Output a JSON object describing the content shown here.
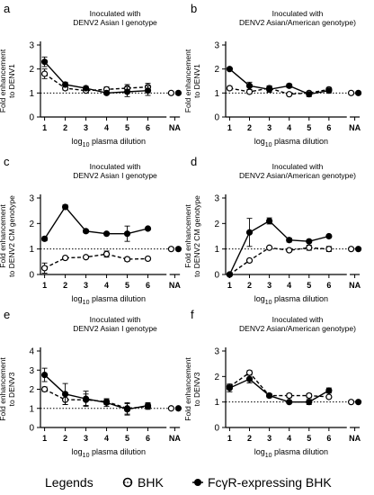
{
  "legend": {
    "title": "Legends",
    "items": [
      "BHK",
      "FcγR-expressing BHK"
    ]
  },
  "colors": {
    "line": "#000000",
    "open_fill": "#ffffff"
  },
  "chart_data": [
    {
      "panel": "a",
      "type": "line",
      "title": "Inoculated with\nDENV2 Asian I genotype",
      "ylabel": "Fold enhancement\nto DENV1",
      "xlabel": "log10 plasma dilution",
      "x_ticks": [
        "1",
        "2",
        "3",
        "4",
        "5",
        "6",
        "NA"
      ],
      "ylim": [
        0,
        3
      ],
      "y_ticks": [
        0,
        1,
        2,
        3
      ],
      "reference_line": 1,
      "series": [
        {
          "name": "BHK",
          "marker": "open",
          "line": "dashed",
          "x": [
            1,
            2,
            3,
            4,
            5,
            6,
            "NA"
          ],
          "values": [
            1.8,
            1.2,
            1.1,
            1.15,
            1.2,
            1.25,
            1.0
          ],
          "errors": [
            0.2,
            0.08,
            0.08,
            0.1,
            0.15,
            0.15,
            0
          ]
        },
        {
          "name": "FcγR-expressing BHK",
          "marker": "filled",
          "line": "solid",
          "x": [
            1,
            2,
            3,
            4,
            5,
            6,
            "NA"
          ],
          "values": [
            2.3,
            1.35,
            1.2,
            1.0,
            1.05,
            1.1,
            1.0
          ],
          "errors": [
            0.2,
            0.1,
            0.08,
            0.06,
            0.2,
            0.2,
            0
          ]
        }
      ]
    },
    {
      "panel": "b",
      "type": "line",
      "title": "Inoculated with\nDENV2 Asian/American genotype)",
      "ylabel": "Fold enhancement\nto DENV1",
      "xlabel": "log10 plasma dilution",
      "x_ticks": [
        "1",
        "2",
        "3",
        "4",
        "5",
        "6",
        "NA"
      ],
      "ylim": [
        0,
        3
      ],
      "y_ticks": [
        0,
        1,
        2,
        3
      ],
      "reference_line": 1,
      "series": [
        {
          "name": "BHK",
          "marker": "open",
          "line": "dashed",
          "x": [
            1,
            2,
            3,
            4,
            5,
            6,
            "NA"
          ],
          "values": [
            1.2,
            1.05,
            1.2,
            0.95,
            1.0,
            1.15,
            1.0
          ],
          "errors": [
            0.08,
            0.08,
            0.1,
            0.05,
            0.05,
            0.08,
            0
          ]
        },
        {
          "name": "FcγR-expressing BHK",
          "marker": "filled",
          "line": "solid",
          "x": [
            1,
            2,
            3,
            4,
            5,
            6,
            "NA"
          ],
          "values": [
            2.0,
            1.3,
            1.15,
            1.3,
            0.95,
            1.1,
            1.0
          ],
          "errors": [
            0.05,
            0.15,
            0.12,
            0.08,
            0.1,
            0.1,
            0
          ]
        }
      ]
    },
    {
      "panel": "c",
      "type": "line",
      "title": "Inoculated with\nDENV2 Asian I genotype",
      "ylabel": "Fold enhancement\nto DENV2 CM genotype",
      "xlabel": "log10 plasma dilution",
      "x_ticks": [
        "1",
        "2",
        "3",
        "4",
        "5",
        "6",
        "NA"
      ],
      "ylim": [
        0,
        3
      ],
      "y_ticks": [
        0,
        1,
        2,
        3
      ],
      "reference_line": 1,
      "series": [
        {
          "name": "BHK",
          "marker": "open",
          "line": "dashed",
          "x": [
            1,
            2,
            3,
            4,
            5,
            6,
            "NA"
          ],
          "values": [
            0.25,
            0.65,
            0.68,
            0.8,
            0.6,
            0.62,
            1.0
          ],
          "errors": [
            0.2,
            0.05,
            0.05,
            0.12,
            0.08,
            0.05,
            0
          ]
        },
        {
          "name": "FcγR-expressing BHK",
          "marker": "filled",
          "line": "solid",
          "x": [
            1,
            2,
            3,
            4,
            5,
            6,
            "NA"
          ],
          "values": [
            1.4,
            2.65,
            1.7,
            1.6,
            1.6,
            1.8,
            1.0
          ],
          "errors": [
            0.08,
            0.08,
            0.05,
            0.05,
            0.3,
            0.05,
            0
          ]
        }
      ]
    },
    {
      "panel": "d",
      "type": "line",
      "title": "Inoculated with\nDENV2 Asian/American genotype)",
      "ylabel": "Fold enhancement\nto DENV2 CM genotype",
      "xlabel": "log10 plasma dilution",
      "x_ticks": [
        "1",
        "2",
        "3",
        "4",
        "5",
        "6",
        "NA"
      ],
      "ylim": [
        0,
        3
      ],
      "y_ticks": [
        0,
        1,
        2,
        3
      ],
      "reference_line": 1,
      "series": [
        {
          "name": "BHK",
          "marker": "open",
          "line": "dashed",
          "x": [
            1,
            2,
            3,
            4,
            5,
            6,
            "NA"
          ],
          "values": [
            0.0,
            0.55,
            1.05,
            0.95,
            1.05,
            1.0,
            1.0
          ],
          "errors": [
            0.02,
            0.05,
            0.05,
            0.05,
            0.1,
            0.1,
            0
          ]
        },
        {
          "name": "FcγR-expressing BHK",
          "marker": "filled",
          "line": "solid",
          "x": [
            1,
            2,
            3,
            4,
            5,
            6,
            "NA"
          ],
          "values": [
            0.0,
            1.65,
            2.1,
            1.35,
            1.3,
            1.5,
            1.0
          ],
          "errors": [
            0.02,
            0.55,
            0.12,
            0.08,
            0.05,
            0.05,
            0
          ]
        }
      ]
    },
    {
      "panel": "e",
      "type": "line",
      "title": "Inoculated with\nDENV2 Asian I genotype",
      "ylabel": "Fold enhancement\nto DENV3",
      "xlabel": "log10 plasma dilution",
      "x_ticks": [
        "1",
        "2",
        "3",
        "4",
        "5",
        "6",
        "NA"
      ],
      "ylim": [
        0,
        4
      ],
      "y_ticks": [
        0,
        1,
        2,
        3,
        4
      ],
      "reference_line": 1,
      "series": [
        {
          "name": "BHK",
          "marker": "open",
          "line": "dashed",
          "x": [
            1,
            2,
            3,
            4,
            5,
            6,
            "NA"
          ],
          "values": [
            2.0,
            1.45,
            1.45,
            1.35,
            1.0,
            1.1,
            1.0
          ],
          "errors": [
            0.12,
            0.25,
            0.3,
            0.15,
            0.3,
            0.15,
            0
          ]
        },
        {
          "name": "FcγR-expressing BHK",
          "marker": "filled",
          "line": "solid",
          "x": [
            1,
            2,
            3,
            4,
            5,
            6,
            "NA"
          ],
          "values": [
            2.75,
            1.75,
            1.5,
            1.3,
            0.95,
            1.15,
            1.0
          ],
          "errors": [
            0.35,
            0.55,
            0.4,
            0.2,
            0.3,
            0.15,
            0
          ]
        }
      ]
    },
    {
      "panel": "f",
      "type": "line",
      "title": "Inoculated with\nDENV2 Asian/American genotype)",
      "ylabel": "Fold enhancement\nto DENV3",
      "xlabel": "log10 plasma dilution",
      "x_ticks": [
        "1",
        "2",
        "3",
        "4",
        "5",
        "6",
        "NA"
      ],
      "ylim": [
        0,
        3
      ],
      "y_ticks": [
        0,
        1,
        2,
        3
      ],
      "reference_line": 1,
      "series": [
        {
          "name": "BHK",
          "marker": "open",
          "line": "dashed",
          "x": [
            1,
            2,
            3,
            4,
            5,
            6,
            "NA"
          ],
          "values": [
            1.6,
            2.15,
            1.25,
            1.25,
            1.25,
            1.2,
            1.0
          ],
          "errors": [
            0.1,
            0.08,
            0.05,
            0.08,
            0.08,
            0.05,
            0
          ]
        },
        {
          "name": "FcγR-expressing BHK",
          "marker": "filled",
          "line": "solid",
          "x": [
            1,
            2,
            3,
            4,
            5,
            6,
            "NA"
          ],
          "values": [
            1.55,
            1.9,
            1.25,
            1.0,
            1.0,
            1.45,
            1.0
          ],
          "errors": [
            0.15,
            0.15,
            0.08,
            0.05,
            0.1,
            0.1,
            0
          ]
        }
      ]
    }
  ]
}
